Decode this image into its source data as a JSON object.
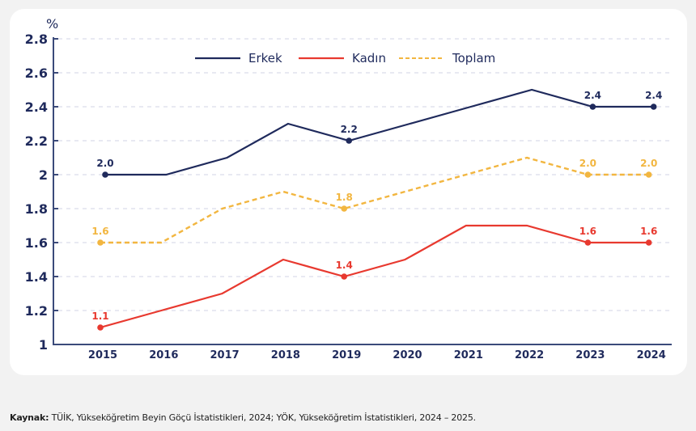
{
  "chart_data": {
    "type": "line",
    "title": "",
    "xlabel": "",
    "ylabel": "%",
    "ylim": [
      1,
      2.8
    ],
    "yticks": [
      "1",
      "1.2",
      "1.4",
      "1.6",
      "1.8",
      "2",
      "2.2",
      "2.4",
      "2.6",
      "2.8"
    ],
    "ytick_values": [
      1,
      1.2,
      1.4,
      1.6,
      1.8,
      2,
      2.2,
      2.4,
      2.6,
      2.8
    ],
    "grid": true,
    "legend_position": "top-center",
    "categories": [
      "2015",
      "2016",
      "2017",
      "2018",
      "2019",
      "2020",
      "2021",
      "2022",
      "2023",
      "2024"
    ],
    "series": [
      {
        "name": "Erkek",
        "color": "#1f2a5c",
        "style": "solid",
        "values": [
          2.0,
          2.0,
          2.1,
          2.3,
          2.2,
          2.3,
          2.4,
          2.5,
          2.4,
          2.4
        ],
        "labeled_points": [
          {
            "index": 0,
            "label": "2.0"
          },
          {
            "index": 4,
            "label": "2.2"
          },
          {
            "index": 8,
            "label": "2.4"
          },
          {
            "index": 9,
            "label": "2.4"
          }
        ]
      },
      {
        "name": "Kadın",
        "color": "#e8392f",
        "style": "solid",
        "values": [
          1.1,
          1.2,
          1.3,
          1.5,
          1.4,
          1.5,
          1.7,
          1.7,
          1.6,
          1.6
        ],
        "labeled_points": [
          {
            "index": 0,
            "label": "1.1"
          },
          {
            "index": 4,
            "label": "1.4"
          },
          {
            "index": 8,
            "label": "1.6"
          },
          {
            "index": 9,
            "label": "1.6"
          }
        ]
      },
      {
        "name": "Toplam",
        "color": "#f2b640",
        "style": "dashed",
        "values": [
          1.6,
          1.6,
          1.8,
          1.9,
          1.8,
          1.9,
          2.0,
          2.1,
          2.0,
          2.0
        ],
        "labeled_points": [
          {
            "index": 0,
            "label": "1.6"
          },
          {
            "index": 4,
            "label": "1.8"
          },
          {
            "index": 8,
            "label": "2.0"
          },
          {
            "index": 9,
            "label": "2.0"
          }
        ]
      }
    ]
  },
  "colors": {
    "axis": "#3b4a7a",
    "grid": "#d9dcea",
    "text": "#1f2a5c"
  },
  "footer": {
    "label": "Kaynak:",
    "text": " TÜİK, Yükseköğretim Beyin Göçü İstatistikleri, 2024; YÖK, Yükseköğretim İstatistikleri, 2024 – 2025."
  }
}
